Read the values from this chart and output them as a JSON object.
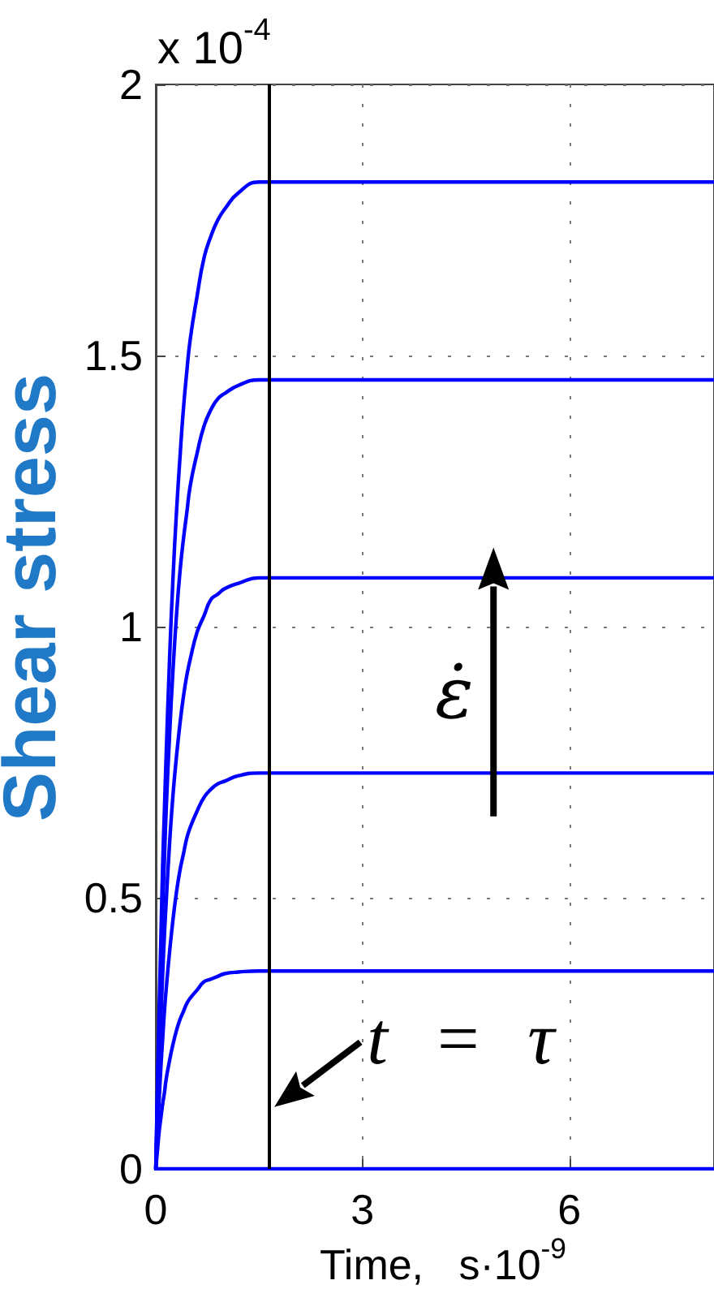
{
  "chart_data": {
    "type": "line",
    "xlabel": "Time,   s·10$^{-9}$",
    "ylabel": "Shear stress",
    "annotations": [
      "x 10$^{-4}$",
      "ε̇"
    ],
    "x": [
      0,
      0.025,
      0.05,
      0.075,
      0.1,
      0.125,
      0.15,
      0.2,
      0.25,
      0.3,
      0.35,
      0.4,
      0.45,
      0.5,
      0.6,
      0.7,
      0.8,
      0.9,
      1.0,
      1.2,
      1.5,
      8.1
    ],
    "series": [
      {
        "color": "#0000ff",
        "values": [
          0,
          0,
          0,
          0,
          0,
          0,
          0,
          0,
          0,
          0,
          0,
          0,
          0,
          0,
          0,
          0,
          0,
          0,
          0,
          0,
          0,
          0
        ]
      },
      {
        "color": "#0000ff",
        "values": [
          0,
          0.035,
          0.07,
          0.095,
          0.12,
          0.14,
          0.165,
          0.2,
          0.23,
          0.255,
          0.275,
          0.29,
          0.305,
          0.315,
          0.33,
          0.345,
          0.35,
          0.355,
          0.36,
          0.363,
          0.365,
          0.365
        ]
      },
      {
        "color": "#0000ff",
        "values": [
          0,
          0.07,
          0.13,
          0.19,
          0.24,
          0.29,
          0.33,
          0.4,
          0.46,
          0.51,
          0.55,
          0.58,
          0.61,
          0.63,
          0.66,
          0.685,
          0.7,
          0.71,
          0.715,
          0.725,
          0.73,
          0.73
        ]
      },
      {
        "color": "#0000ff",
        "values": [
          0,
          0.1,
          0.2,
          0.28,
          0.36,
          0.43,
          0.49,
          0.6,
          0.69,
          0.76,
          0.82,
          0.87,
          0.91,
          0.94,
          0.99,
          1.02,
          1.05,
          1.06,
          1.07,
          1.08,
          1.09,
          1.09
        ]
      },
      {
        "color": "#0000ff",
        "values": [
          0,
          0.14,
          0.26,
          0.38,
          0.48,
          0.57,
          0.66,
          0.8,
          0.92,
          1.02,
          1.1,
          1.16,
          1.21,
          1.26,
          1.32,
          1.37,
          1.4,
          1.42,
          1.43,
          1.445,
          1.455,
          1.455
        ]
      },
      {
        "color": "#0000ff",
        "values": [
          0,
          0.16,
          0.3,
          0.43,
          0.56,
          0.66,
          0.76,
          0.94,
          1.09,
          1.21,
          1.31,
          1.4,
          1.47,
          1.53,
          1.61,
          1.68,
          1.72,
          1.75,
          1.77,
          1.8,
          1.82,
          1.82
        ]
      }
    ],
    "xlim": [
      0,
      8.1
    ],
    "xticks": [
      0,
      3,
      6
    ],
    "ylim": [
      0,
      2
    ],
    "yticks": [
      0,
      0.5,
      1,
      1.5,
      2
    ],
    "ref_lines": [
      {
        "axis": "x",
        "value": 1.65,
        "label": "t = τ",
        "color": "#000000"
      }
    ],
    "grid": true,
    "marker": "none"
  }
}
